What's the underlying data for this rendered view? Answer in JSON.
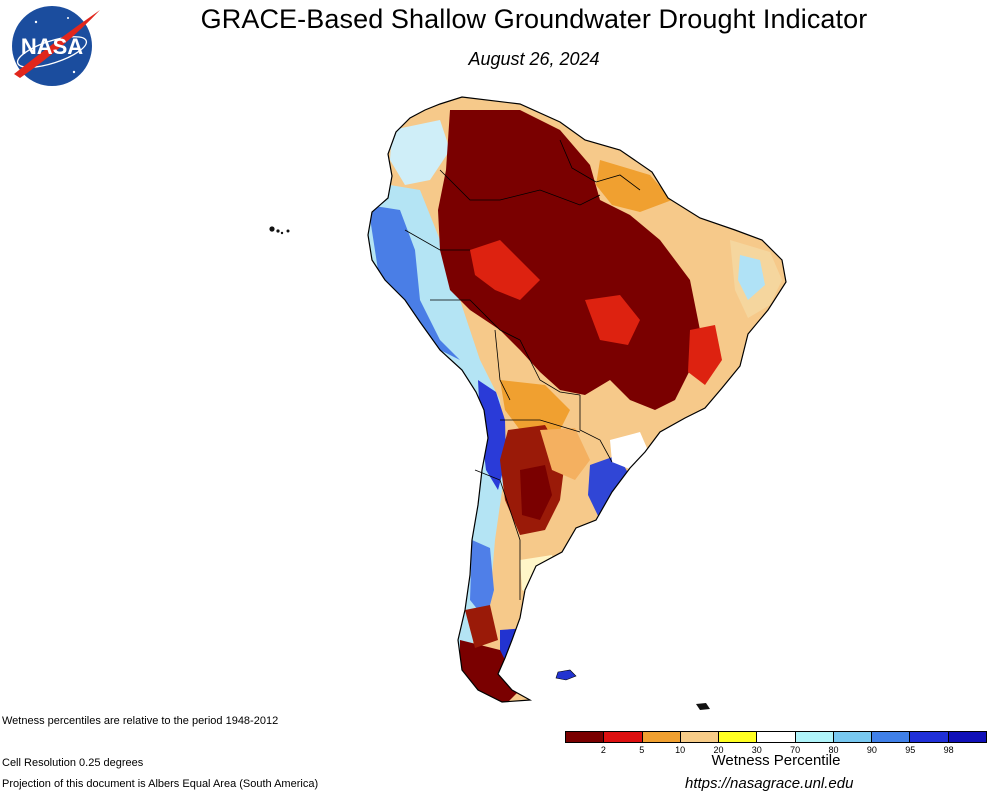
{
  "header": {
    "logo_text": "NASA",
    "title": "GRACE-Based Shallow Groundwater Drought Indicator",
    "date": "August 26, 2024"
  },
  "notes": {
    "baseline": "Wetness percentiles are relative to the period 1948-2012",
    "resolution": "Cell Resolution 0.25 degrees",
    "projection": "Projection of this document is Albers Equal Area (South America)"
  },
  "legend": {
    "title": "Wetness Percentile",
    "colors": [
      "#7a0000",
      "#dd1010",
      "#f0a030",
      "#f7cc88",
      "#ffff22",
      "#ffffff",
      "#b0f4fa",
      "#78c8f0",
      "#4080e8",
      "#2030d8",
      "#1010b8"
    ],
    "ticks": [
      "2",
      "5",
      "10",
      "20",
      "30",
      "70",
      "80",
      "90",
      "95",
      "98"
    ]
  },
  "footer": {
    "url": "https://nasagrace.unl.edu"
  }
}
